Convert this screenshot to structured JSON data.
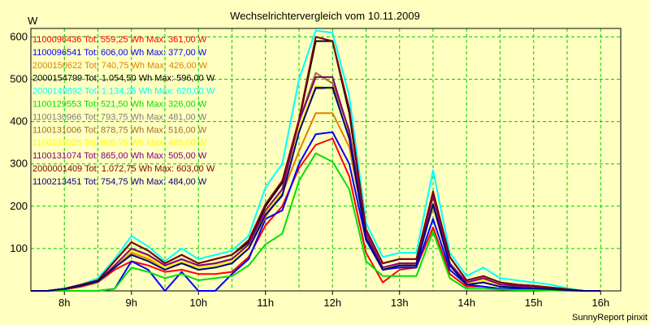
{
  "chart_data": {
    "type": "line",
    "title": "Wechselrichtervergleich vom 10.11.2009",
    "yunit": "W",
    "credit": "SunnyReport pinxit",
    "xlabels": [
      "8h",
      "9h",
      "10h",
      "11h",
      "12h",
      "13h",
      "14h",
      "15h",
      "16h"
    ],
    "yticks": [
      100,
      200,
      300,
      400,
      500,
      600
    ],
    "xlim": [
      7.5,
      16.3
    ],
    "ylim": [
      0,
      620
    ],
    "grid": true,
    "legend_position": "top-left",
    "x": [
      7.5,
      7.75,
      8.0,
      8.25,
      8.5,
      8.75,
      9.0,
      9.25,
      9.5,
      9.75,
      10.0,
      10.25,
      10.5,
      10.75,
      11.0,
      11.25,
      11.5,
      11.75,
      12.0,
      12.25,
      12.5,
      12.75,
      13.0,
      13.25,
      13.5,
      13.75,
      14.0,
      14.25,
      14.5,
      14.75,
      15.0,
      15.25,
      15.5,
      15.75,
      16.0
    ],
    "series": [
      {
        "name": "1100096436 Tot: 559,25 Wh Max: 361,00 W",
        "color": "#ff0000",
        "values": [
          0,
          0,
          3,
          10,
          20,
          50,
          70,
          60,
          45,
          50,
          40,
          40,
          45,
          80,
          155,
          200,
          290,
          345,
          360,
          270,
          90,
          20,
          50,
          55,
          150,
          40,
          10,
          10,
          5,
          5,
          4,
          3,
          2,
          0,
          0
        ]
      },
      {
        "name": "1100096541 Tot: 606,00 Wh Max: 377,00 W",
        "color": "#0000ff",
        "values": [
          0,
          0,
          0,
          0,
          0,
          5,
          70,
          50,
          0,
          45,
          0,
          0,
          40,
          75,
          170,
          190,
          300,
          370,
          375,
          300,
          120,
          50,
          55,
          55,
          170,
          50,
          15,
          10,
          5,
          5,
          4,
          3,
          2,
          0,
          0
        ]
      },
      {
        "name": "2000150622 Tot: 740,75 Wh Max: 426,00 W",
        "color": "#e08000",
        "values": [
          0,
          0,
          5,
          12,
          20,
          55,
          90,
          75,
          55,
          65,
          55,
          60,
          70,
          100,
          175,
          230,
          330,
          420,
          420,
          340,
          130,
          50,
          60,
          65,
          200,
          60,
          20,
          25,
          15,
          10,
          8,
          5,
          3,
          0,
          0
        ]
      },
      {
        "name": "2000154799 Tot: 1.054,50 Wh Max: 596,00 W",
        "color": "#000000",
        "values": [
          0,
          0,
          5,
          15,
          25,
          70,
          115,
          95,
          65,
          85,
          65,
          75,
          85,
          115,
          200,
          255,
          400,
          590,
          590,
          420,
          145,
          65,
          75,
          75,
          230,
          80,
          25,
          35,
          20,
          15,
          12,
          8,
          4,
          0,
          0
        ]
      },
      {
        "name": "2000149892 Tot: 1.134,25 Wh Max: 620,00 W",
        "color": "#00ffff",
        "values": [
          0,
          0,
          5,
          15,
          30,
          75,
          130,
          105,
          70,
          100,
          75,
          85,
          95,
          130,
          245,
          300,
          500,
          615,
          610,
          460,
          160,
          80,
          90,
          90,
          285,
          90,
          35,
          55,
          30,
          25,
          20,
          15,
          6,
          0,
          0
        ]
      },
      {
        "name": "1100129553 Tot: 521,50 Wh Max: 326,00 W",
        "color": "#00e000",
        "values": [
          0,
          0,
          0,
          0,
          0,
          5,
          55,
          45,
          30,
          40,
          25,
          30,
          35,
          60,
          110,
          135,
          260,
          325,
          305,
          240,
          70,
          35,
          35,
          35,
          140,
          30,
          5,
          5,
          3,
          2,
          2,
          1,
          0,
          0,
          0
        ]
      },
      {
        "name": "1100130966 Tot: 793,75 Wh Max: 481,00 W",
        "color": "#808080",
        "values": [
          0,
          0,
          5,
          12,
          22,
          60,
          95,
          80,
          55,
          70,
          55,
          60,
          70,
          105,
          180,
          230,
          380,
          478,
          478,
          370,
          130,
          55,
          60,
          60,
          210,
          60,
          20,
          25,
          15,
          10,
          8,
          5,
          3,
          0,
          0
        ]
      },
      {
        "name": "1100131006 Tot: 878,75 Wh Max: 516,00 W",
        "color": "#a07020",
        "values": [
          0,
          0,
          5,
          12,
          22,
          60,
          100,
          85,
          60,
          75,
          60,
          65,
          75,
          110,
          190,
          240,
          400,
          515,
          490,
          380,
          135,
          55,
          65,
          65,
          225,
          65,
          20,
          30,
          15,
          12,
          10,
          6,
          3,
          0,
          0
        ]
      },
      {
        "name": "1100131025 Tot: 805,75 Wh Max: 485,00 W",
        "color": "#ffff00",
        "values": [
          0,
          0,
          5,
          12,
          22,
          60,
          95,
          80,
          55,
          70,
          55,
          60,
          70,
          105,
          185,
          235,
          385,
          485,
          475,
          370,
          130,
          55,
          60,
          60,
          210,
          60,
          20,
          25,
          15,
          10,
          8,
          5,
          3,
          0,
          0
        ]
      },
      {
        "name": "1100131074 Tot: 865,00 Wh Max: 505,00 W",
        "color": "#800080",
        "values": [
          0,
          0,
          5,
          12,
          22,
          60,
          100,
          85,
          60,
          75,
          60,
          65,
          75,
          110,
          190,
          240,
          400,
          505,
          505,
          375,
          135,
          55,
          65,
          65,
          225,
          65,
          20,
          30,
          15,
          12,
          10,
          6,
          3,
          0,
          0
        ]
      },
      {
        "name": "2000001409 Tot: 1.072,75 Wh Max: 603,00 W",
        "color": "#800000",
        "values": [
          0,
          0,
          5,
          15,
          25,
          70,
          115,
          95,
          65,
          85,
          65,
          75,
          85,
          120,
          205,
          260,
          405,
          600,
          590,
          430,
          145,
          65,
          75,
          75,
          235,
          80,
          25,
          35,
          20,
          15,
          12,
          8,
          4,
          0,
          0
        ]
      },
      {
        "name": "1100213451 Tot: 754,75 Wh Max: 484,00 W",
        "color": "#000080",
        "values": [
          0,
          0,
          5,
          12,
          22,
          55,
          85,
          70,
          50,
          65,
          50,
          55,
          65,
          100,
          180,
          225,
          375,
          480,
          480,
          360,
          125,
          50,
          60,
          60,
          205,
          60,
          15,
          20,
          10,
          8,
          6,
          4,
          2,
          0,
          0
        ]
      }
    ]
  }
}
